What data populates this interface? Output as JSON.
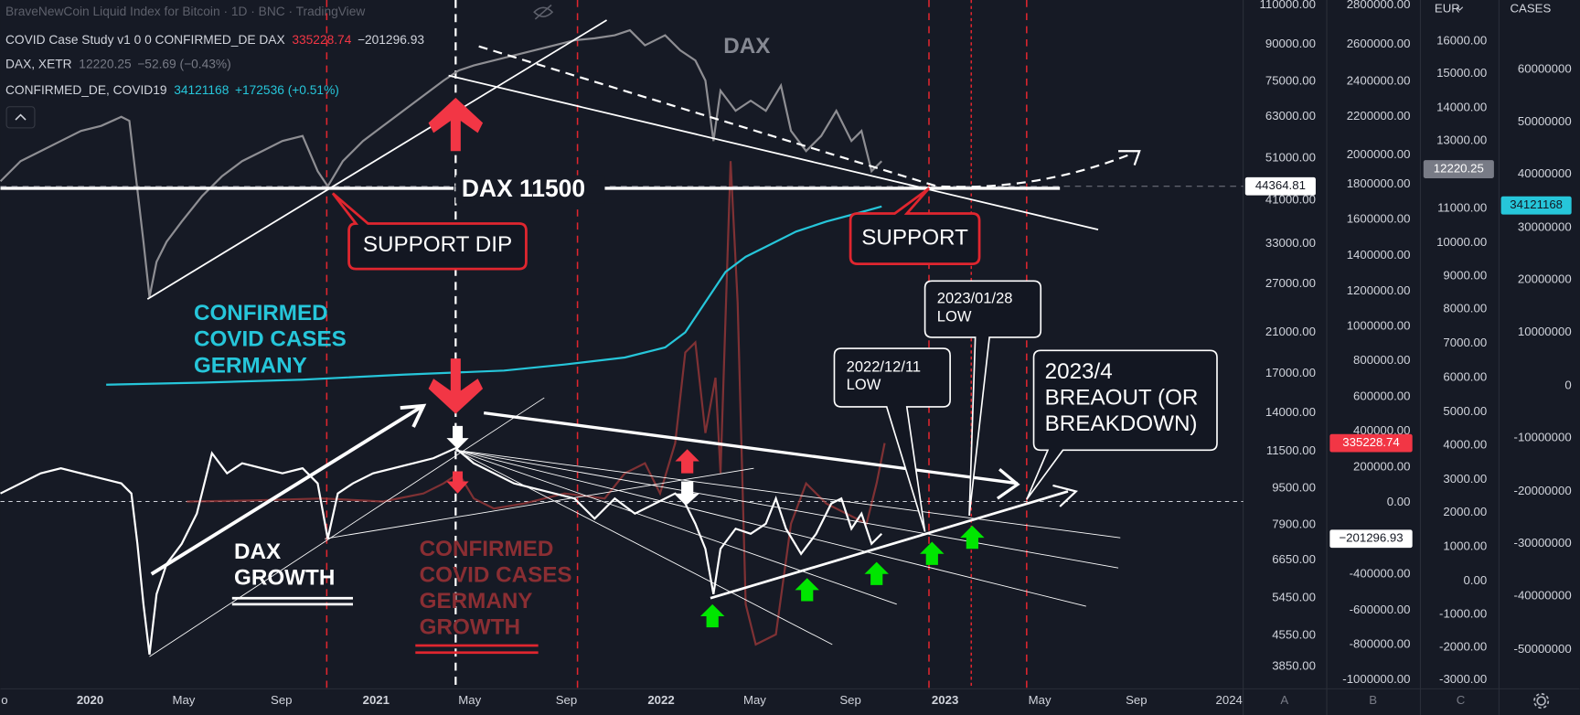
{
  "header": {
    "title": "BraveNewCoin Liquid Index for Bitcoin · 1D · BNC · TradingView"
  },
  "legend": [
    {
      "name": "COVID Case Study v1 0 0 CONFIRMED_DE DAX",
      "value": "335228.74",
      "change": "−201296.93"
    },
    {
      "name": "DAX, XETR",
      "value": "12220.25",
      "change": "−52.69 (−0.43%)"
    },
    {
      "name": "CONFIRMED_DE, COVID19",
      "value": "34121168",
      "change": "+172536 (+0.51%)"
    }
  ],
  "annotations": {
    "dax_label": "DAX",
    "dax_level": "DAX 11500",
    "support_dip": "SUPPORT DIP",
    "support": "SUPPORT",
    "confirmed": [
      "CONFIRMED",
      "COVID CASES",
      "GERMANY"
    ],
    "dax_growth": [
      "DAX",
      "GROWTH"
    ],
    "confirmed_growth": [
      "CONFIRMED",
      "COVID CASES",
      "GERMANY",
      "GROWTH"
    ],
    "low_1": [
      "2022/12/11",
      "LOW"
    ],
    "low_2": [
      "2023/01/28",
      "LOW"
    ],
    "breakout": [
      "2023/4",
      "BREAOUT (OR",
      "BREAKDOWN)"
    ]
  },
  "time_axis": [
    "o",
    "2020",
    "May",
    "Sep",
    "2021",
    "May",
    "Sep",
    "2022",
    "May",
    "Sep",
    "2023",
    "May",
    "Sep",
    "2024"
  ],
  "axis_a": [
    "110000.00",
    "90000.00",
    "75000.00",
    "63000.00",
    "51000.00",
    "41000.00",
    "33000.00",
    "27000.00",
    "21000.00",
    "17000.00",
    "14000.00",
    "11500.00",
    "9500.00",
    "7900.00",
    "6650.00",
    "5450.00",
    "4550.00",
    "3850.00"
  ],
  "axis_b": [
    "2800000.00",
    "2600000.00",
    "2400000.00",
    "2200000.00",
    "2000000.00",
    "1800000.00",
    "1600000.00",
    "1400000.00",
    "1200000.00",
    "1000000.00",
    "800000.00",
    "600000.00",
    "400000.00",
    "200000.00",
    "0.00",
    "-400000.00",
    "-600000.00",
    "-800000.00",
    "-1000000.00"
  ],
  "axis_c": [
    "16000.00",
    "15000.00",
    "14000.00",
    "13000.00",
    "11000.00",
    "10000.00",
    "9000.00",
    "8000.00",
    "7000.00",
    "6000.00",
    "5000.00",
    "4000.00",
    "3000.00",
    "2000.00",
    "1000.00",
    "0.00",
    "-1000.00",
    "-2000.00",
    "-3000.00"
  ],
  "axis_cases": [
    "60000000",
    "50000000",
    "40000000",
    "30000000",
    "20000000",
    "10000000",
    "0",
    "-10000000",
    "-20000000",
    "-30000000",
    "-40000000",
    "-50000000"
  ],
  "axis_headers": {
    "currency": "EUR",
    "cases": "CASES",
    "a": "A",
    "b": "B",
    "c": "C"
  },
  "price_tags": [
    "44364.81",
    "335228.74",
    "−201296.93",
    "12220.25",
    "34121168"
  ]
}
